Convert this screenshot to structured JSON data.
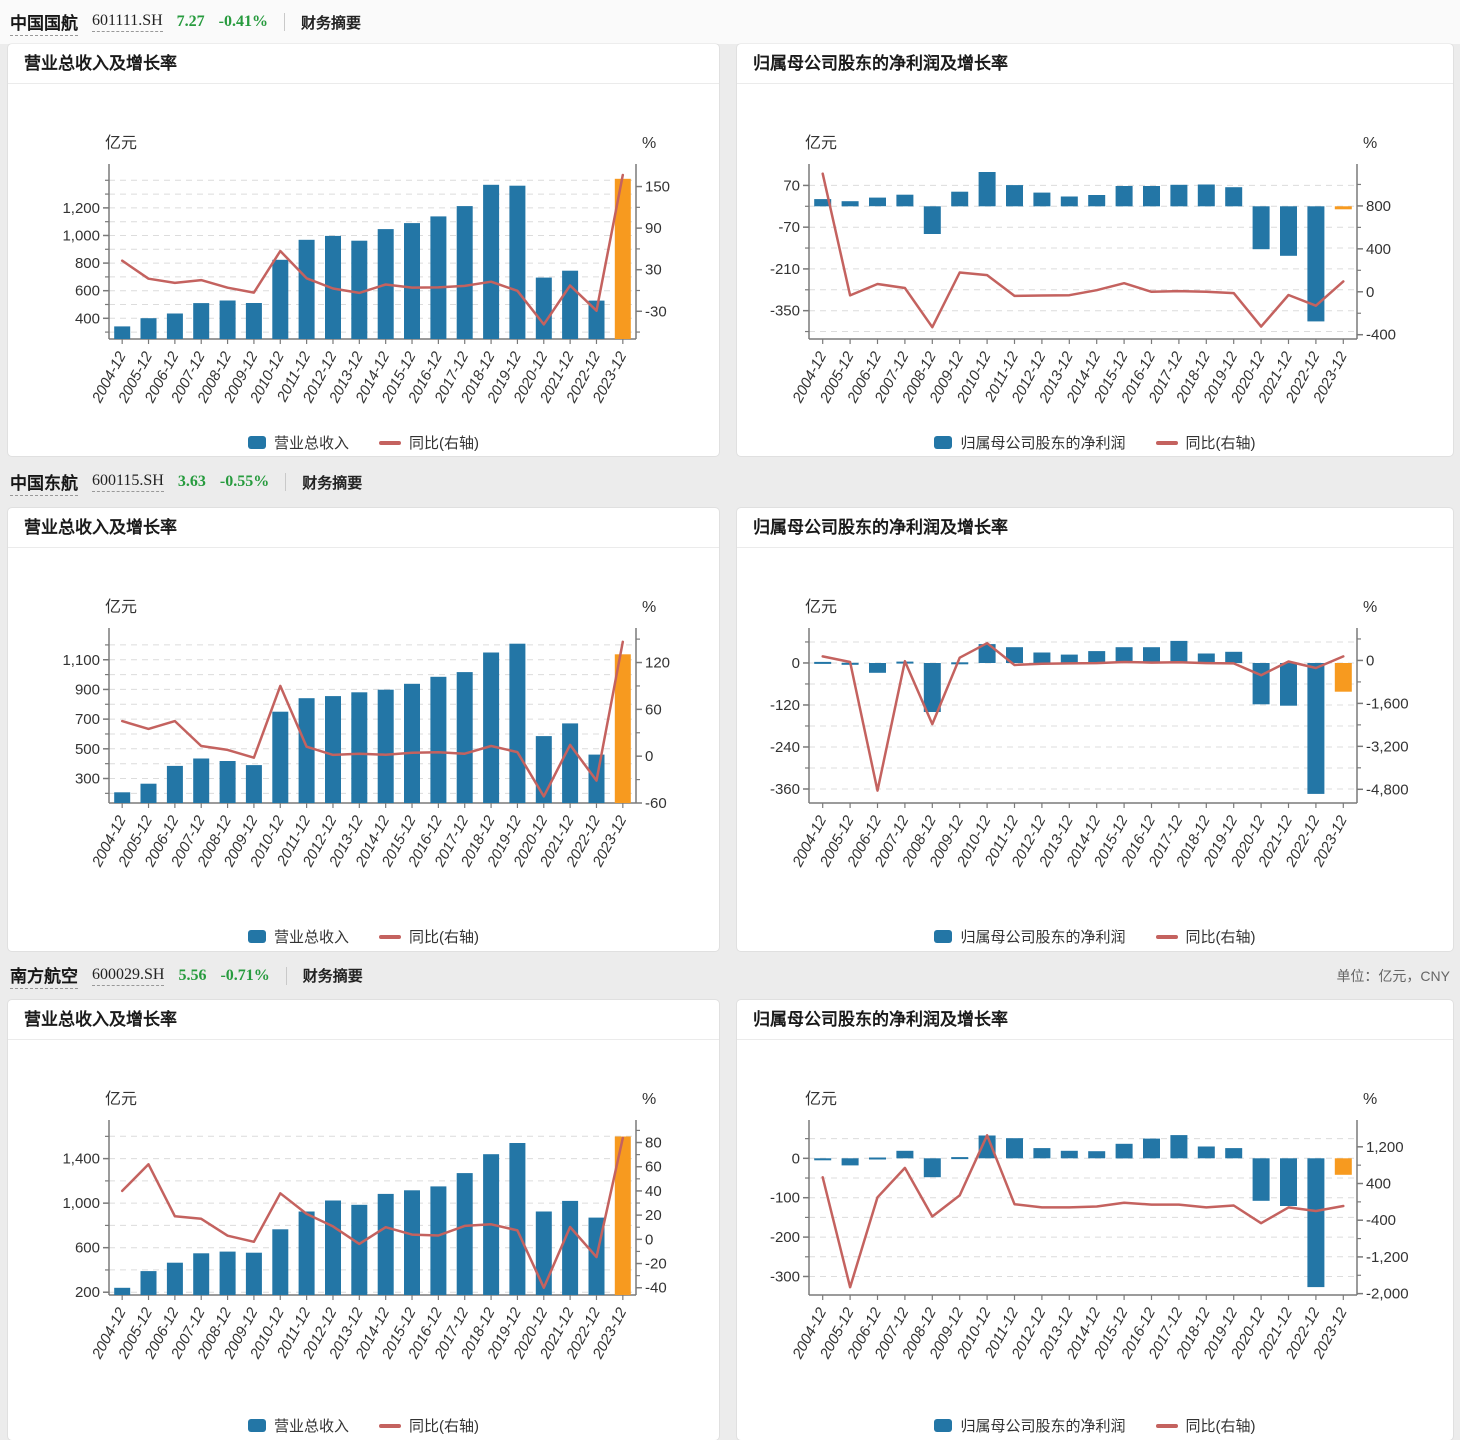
{
  "page": {
    "unit_note": "单位：亿元，CNY"
  },
  "colors": {
    "bar_blue": "#2376a6",
    "bar_orange": "#f79a1f",
    "line_red": "#c4625f",
    "price_green": "#279b3e"
  },
  "companies": [
    {
      "name": "中国国航",
      "code": "601111.SH",
      "price": "7.27",
      "change": "-0.41%",
      "summary_link": "财务摘要"
    },
    {
      "name": "中国东航",
      "code": "600115.SH",
      "price": "3.63",
      "change": "-0.55%",
      "summary_link": "财务摘要"
    },
    {
      "name": "南方航空",
      "code": "600029.SH",
      "price": "5.56",
      "change": "-0.71%",
      "summary_link": "财务摘要"
    }
  ],
  "chart_data": [
    {
      "company": "中国国航",
      "type": "bar+line",
      "title": "营业总收入及增长率",
      "legend_bar": "营业总收入",
      "legend_line": "同比(右轴)",
      "left_axis": {
        "label": "亿元",
        "min": 250,
        "max": 1460,
        "major_ticks": [
          1200,
          1000,
          800,
          600,
          400
        ],
        "minor_ticks": [
          1400,
          1300,
          1100,
          900,
          700,
          500,
          300
        ]
      },
      "right_axis": {
        "label": "%",
        "min": -70,
        "max": 171,
        "major_ticks": [
          150,
          90,
          30,
          -30
        ],
        "minor_ticks": [
          120,
          60,
          0,
          -60
        ]
      },
      "categories": [
        "2004-12",
        "2005-12",
        "2006-12",
        "2007-12",
        "2008-12",
        "2009-12",
        "2010-12",
        "2011-12",
        "2012-12",
        "2013-12",
        "2014-12",
        "2015-12",
        "2016-12",
        "2017-12",
        "2018-12",
        "2019-12",
        "2020-12",
        "2021-12",
        "2022-12",
        "2023-12"
      ],
      "bars": [
        341,
        401,
        435,
        510,
        529,
        511,
        824,
        969,
        997,
        962,
        1046,
        1090,
        1138,
        1213,
        1367,
        1361,
        695,
        745,
        528,
        1411
      ],
      "line": [
        43,
        17,
        11,
        15,
        4,
        -3,
        57,
        17.6,
        2.9,
        -3.5,
        8.7,
        4.2,
        4.4,
        6.6,
        12.7,
        -0.4,
        -48.9,
        7.2,
        -29.1,
        166.7
      ],
      "highlight_last_bar": true
    },
    {
      "company": "中国国航",
      "type": "bar+line",
      "title": "归属母公司股东的净利润及增长率",
      "legend_bar": "归属母公司股东的净利润",
      "legend_line": "同比(右轴)",
      "left_axis": {
        "label": "亿元",
        "min": -445,
        "max": 115,
        "major_ticks": [
          70,
          -70,
          -210,
          -350
        ],
        "minor_ticks": [
          0,
          -140,
          -280,
          -420
        ]
      },
      "right_axis": {
        "label": "%",
        "min": -440,
        "max": 1116,
        "major_ticks": [
          800,
          400,
          0,
          -400
        ],
        "minor_ticks": [
          1000,
          600,
          200,
          -200
        ]
      },
      "categories": [
        "2004-12",
        "2005-12",
        "2006-12",
        "2007-12",
        "2008-12",
        "2009-12",
        "2010-12",
        "2011-12",
        "2012-12",
        "2013-12",
        "2014-12",
        "2015-12",
        "2016-12",
        "2017-12",
        "2018-12",
        "2019-12",
        "2020-12",
        "2021-12",
        "2022-12",
        "2023-12"
      ],
      "bars": [
        24,
        17,
        29,
        39,
        -93,
        49,
        120,
        71,
        46,
        33,
        38,
        68,
        68,
        72,
        73,
        64,
        -144,
        -166,
        -386,
        -10
      ],
      "line": [
        1100,
        -34,
        72,
        35,
        -330,
        180,
        155,
        -38,
        -35,
        -32,
        15,
        80,
        0,
        6,
        1,
        -12,
        -324,
        -30,
        -130,
        97
      ],
      "highlight_last_bar": true
    },
    {
      "company": "中国东航",
      "type": "bar+line",
      "title": "营业总收入及增长率",
      "legend_bar": "营业总收入",
      "legend_line": "同比(右轴)",
      "left_axis": {
        "label": "亿元",
        "min": 135,
        "max": 1260,
        "major_ticks": [
          1100,
          900,
          700,
          500,
          300
        ],
        "minor_ticks": [
          1200,
          1000,
          800,
          600,
          400,
          200
        ]
      },
      "right_axis": {
        "label": "%",
        "min": -60,
        "max": 154,
        "major_ticks": [
          120,
          60,
          0,
          -60
        ],
        "minor_ticks": [
          150,
          90,
          30,
          -30
        ]
      },
      "categories": [
        "2004-12",
        "2005-12",
        "2006-12",
        "2007-12",
        "2008-12",
        "2009-12",
        "2010-12",
        "2011-12",
        "2012-12",
        "2013-12",
        "2014-12",
        "2015-12",
        "2016-12",
        "2017-12",
        "2018-12",
        "2019-12",
        "2020-12",
        "2021-12",
        "2022-12",
        "2023-12"
      ],
      "bars": [
        207,
        265,
        385,
        435,
        418,
        390,
        750,
        841,
        855,
        881,
        898,
        938,
        985,
        1017,
        1149,
        1208,
        586,
        671,
        461,
        1137
      ],
      "line": [
        45,
        35,
        45,
        13,
        8,
        -2,
        90,
        12.1,
        1.7,
        3.1,
        1.9,
        4.5,
        5,
        3.2,
        13,
        5.2,
        -51.5,
        14.5,
        -31.3,
        146.6
      ],
      "highlight_last_bar": true
    },
    {
      "company": "中国东航",
      "type": "bar+line",
      "title": "归属母公司股东的净利润及增长率",
      "legend_bar": "归属母公司股东的净利润",
      "legend_line": "同比(右轴)",
      "left_axis": {
        "label": "亿元",
        "min": -400,
        "max": 77,
        "major_ticks": [
          0,
          -120,
          -240,
          -360
        ],
        "minor_ticks": [
          60,
          -60,
          -180,
          -300
        ]
      },
      "right_axis": {
        "label": "%",
        "min": -5310,
        "max": 910,
        "major_ticks": [
          0,
          -1600,
          -3200,
          -4800
        ],
        "minor_ticks": [
          800,
          -800,
          -2400,
          -4000
        ]
      },
      "categories": [
        "2004-12",
        "2005-12",
        "2006-12",
        "2007-12",
        "2008-12",
        "2009-12",
        "2010-12",
        "2011-12",
        "2012-12",
        "2013-12",
        "2014-12",
        "2015-12",
        "2016-12",
        "2017-12",
        "2018-12",
        "2019-12",
        "2020-12",
        "2021-12",
        "2022-12",
        "2023-12"
      ],
      "bars": [
        3,
        0.5,
        -28,
        4,
        -140,
        2,
        54,
        45,
        30,
        24,
        34,
        45,
        45,
        63,
        27,
        32,
        -118,
        -122,
        -374,
        -82
      ],
      "line": [
        150,
        -60,
        -4850,
        -30,
        -2370,
        100,
        640,
        -170,
        -120,
        -110,
        -100,
        -60,
        -80,
        -70,
        -100,
        -110,
        -550,
        -40,
        -280,
        150
      ],
      "highlight_last_bar": true
    },
    {
      "company": "南方航空",
      "type": "bar+line",
      "title": "营业总收入及增长率",
      "legend_bar": "营业总收入",
      "legend_line": "同比(右轴)",
      "left_axis": {
        "label": "亿元",
        "min": 175,
        "max": 1675,
        "major_ticks": [
          1400,
          1000,
          600,
          200
        ],
        "minor_ticks": [
          1600,
          1200,
          800,
          400
        ]
      },
      "right_axis": {
        "label": "%",
        "min": -46,
        "max": 92,
        "major_ticks": [
          80,
          60,
          40,
          20,
          0,
          -20,
          -40
        ],
        "minor_ticks": [
          90,
          70,
          50,
          30,
          10,
          -10,
          -30
        ]
      },
      "categories": [
        "2004-12",
        "2005-12",
        "2006-12",
        "2007-12",
        "2008-12",
        "2009-12",
        "2010-12",
        "2011-12",
        "2012-12",
        "2013-12",
        "2014-12",
        "2015-12",
        "2016-12",
        "2017-12",
        "2018-12",
        "2019-12",
        "2020-12",
        "2021-12",
        "2022-12",
        "2023-12"
      ],
      "bars": [
        240,
        390,
        465,
        550,
        565,
        555,
        765,
        925,
        1024,
        985,
        1083,
        1115,
        1150,
        1270,
        1440,
        1540,
        925,
        1020,
        870,
        1599
      ],
      "line": [
        40,
        62,
        19,
        17,
        3,
        -2,
        38,
        21,
        10.7,
        -3.8,
        10,
        3.9,
        3.2,
        11.1,
        12.4,
        7.4,
        -40,
        10.2,
        -14.7,
        83.7
      ],
      "highlight_last_bar": true
    },
    {
      "company": "南方航空",
      "type": "bar+line",
      "title": "归属母公司股东的净利润及增长率",
      "legend_bar": "归属母公司股东的净利润",
      "legend_line": "同比(右轴)",
      "left_axis": {
        "label": "亿元",
        "min": -347,
        "max": 77,
        "major_ticks": [
          0,
          -100,
          -200,
          -300
        ],
        "minor_ticks": [
          50,
          -50,
          -150,
          -250
        ]
      },
      "right_axis": {
        "label": "%",
        "min": -2030,
        "max": 1610,
        "major_ticks": [
          1200,
          400,
          -400,
          -1200,
          -2000
        ],
        "minor_ticks": [
          800,
          0,
          -800,
          -1600
        ]
      },
      "categories": [
        "2004-12",
        "2005-12",
        "2006-12",
        "2007-12",
        "2008-12",
        "2009-12",
        "2010-12",
        "2011-12",
        "2012-12",
        "2013-12",
        "2014-12",
        "2015-12",
        "2016-12",
        "2017-12",
        "2018-12",
        "2019-12",
        "2020-12",
        "2021-12",
        "2022-12",
        "2023-12"
      ],
      "bars": [
        -2,
        -18,
        2,
        19,
        -48,
        3,
        58,
        51,
        26,
        19,
        18,
        37,
        50,
        59,
        30,
        26,
        -108,
        -121,
        -327,
        -42
      ],
      "line": [
        535,
        -1860,
        100,
        740,
        -320,
        140,
        1450,
        -50,
        -120,
        -120,
        -100,
        -20,
        -60,
        -60,
        -120,
        -80,
        -465,
        -120,
        -200,
        -90
      ],
      "highlight_last_bar": true
    }
  ]
}
